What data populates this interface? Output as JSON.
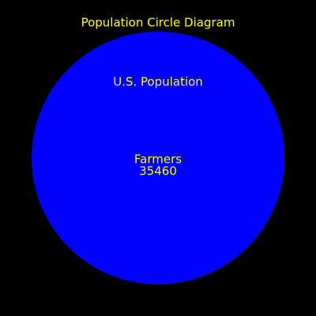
{
  "title": "Population Circle Diagram",
  "circle": {
    "label": "U.S. Population",
    "color": "#0000FF"
  },
  "inner": {
    "label": "Farmers",
    "value": "35460"
  },
  "colors": {
    "background": "#000000",
    "text": "#FFFF00"
  }
}
